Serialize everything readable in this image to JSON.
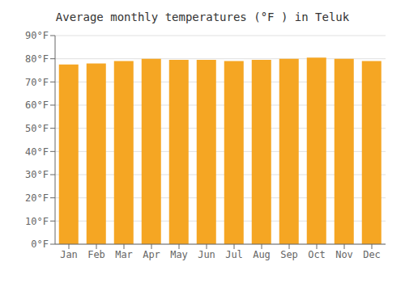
{
  "chart_data": {
    "type": "bar",
    "title": "Average monthly temperatures (°F ) in Teluk",
    "categories": [
      "Jan",
      "Feb",
      "Mar",
      "Apr",
      "May",
      "Jun",
      "Jul",
      "Aug",
      "Sep",
      "Oct",
      "Nov",
      "Dec"
    ],
    "values": [
      77.5,
      78.0,
      79.0,
      80.0,
      79.5,
      79.5,
      79.0,
      79.5,
      80.0,
      80.5,
      80.0,
      79.0
    ],
    "color": "#F5A623",
    "ylim": [
      0,
      90
    ],
    "yticks": [
      {
        "value": 0,
        "label": "0°F"
      },
      {
        "value": 10,
        "label": "10°F"
      },
      {
        "value": 20,
        "label": "20°F"
      },
      {
        "value": 30,
        "label": "30°F"
      },
      {
        "value": 40,
        "label": "40°F"
      },
      {
        "value": 50,
        "label": "50°F"
      },
      {
        "value": 60,
        "label": "60°F"
      },
      {
        "value": 70,
        "label": "70°F"
      },
      {
        "value": 80,
        "label": "80°F"
      },
      {
        "value": 90,
        "label": "90°F"
      }
    ],
    "grid": true
  }
}
